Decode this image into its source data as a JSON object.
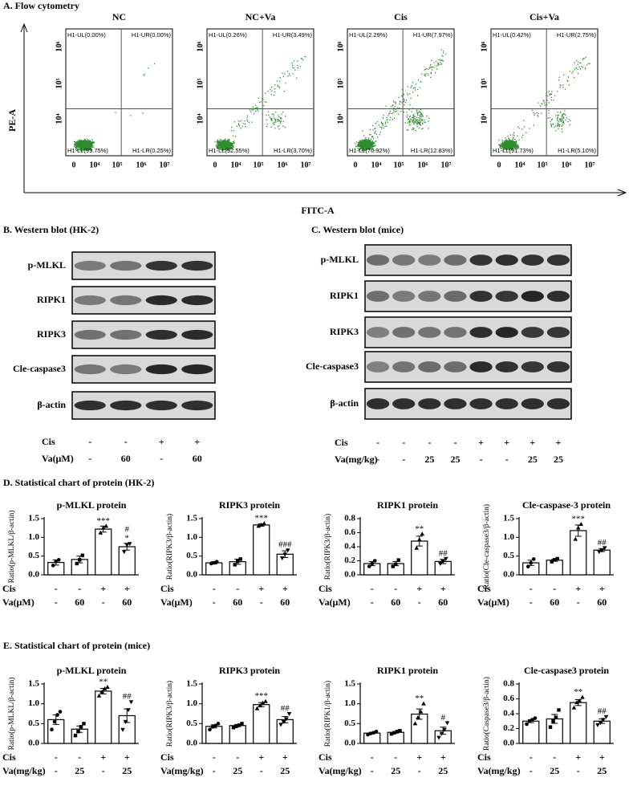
{
  "panel_a": {
    "title": "A. Flow cytometry",
    "y_label": "PE-A",
    "x_label": "FITC-A",
    "x_tick_labels": [
      "0",
      "10⁴",
      "10⁵",
      "10⁶",
      "10⁷"
    ],
    "y_tick_labels": [
      "10⁴",
      "10⁵",
      "10⁶"
    ],
    "plots": [
      {
        "title": "NC",
        "quadrants": [
          "H1-UL(0.00%)",
          "H1-UR(0.00%)",
          "H1-LL(99.75%)",
          "H1-LR(0.25%)"
        ]
      },
      {
        "title": "NC+Va",
        "quadrants": [
          "H1-UL(0.26%)",
          "H1-UR(3.49%)",
          "H1-LL(92.55%)",
          "H1-LR(3.70%)"
        ]
      },
      {
        "title": "Cis",
        "quadrants": [
          "H1-UL(2.29%)",
          "H1-UR(7.97%)",
          "H1-LL(76.92%)",
          "H1-LR(12.83%)"
        ]
      },
      {
        "title": "Cis+Va",
        "quadrants": [
          "H1-UL(0.42%)",
          "H1-UR(2.75%)",
          "H1-LL(91.73%)",
          "H1-LR(5.10%)"
        ]
      }
    ]
  },
  "panel_b": {
    "title": "B. Western blot (HK-2)",
    "proteins": [
      "p-MLKL",
      "RIPK1",
      "RIPK3",
      "Cle-caspase3",
      "β-actin"
    ],
    "rows": [
      {
        "label": "Cis",
        "cells": [
          "-",
          "-",
          "+",
          "+"
        ]
      },
      {
        "label": "Va(μM)",
        "cells": [
          "-",
          "60",
          "-",
          "60"
        ]
      }
    ]
  },
  "panel_c": {
    "title": "C. Western blot (mice)",
    "proteins": [
      "p-MLKL",
      "RIPK1",
      "RIPK3",
      "Cle-caspase3",
      "β-actin"
    ],
    "rows": [
      {
        "label": "Cis",
        "cells": [
          "-",
          "-",
          "-",
          "-",
          "+",
          "+",
          "+",
          "+"
        ]
      },
      {
        "label": "Va(mg/kg)",
        "cells": [
          "-",
          "-",
          "25",
          "25",
          "-",
          "-",
          "25",
          "25"
        ]
      }
    ]
  },
  "panel_d_title": "D. Statistical chart of protein (HK-2)",
  "panel_e_title": "E. Statistical chart of protein (mice)",
  "chart_data": [
    {
      "type": "bar",
      "title": "p-MLKL protein",
      "y_label": "Ratio(p-MLKL/β-actin)",
      "categories": [
        null,
        null,
        null,
        null
      ],
      "values": [
        0.33,
        0.41,
        1.22,
        0.75
      ],
      "errors": [
        0.07,
        0.09,
        0.08,
        0.09
      ],
      "points": [
        [
          0.25,
          0.35,
          0.4
        ],
        [
          0.3,
          0.4,
          0.52
        ],
        [
          1.12,
          1.25,
          1.3
        ],
        [
          0.62,
          0.8,
          0.83
        ]
      ],
      "stars": [
        null,
        null,
        "***",
        "*"
      ],
      "hashes": [
        null,
        null,
        null,
        "#"
      ],
      "ylim": [
        0,
        1.5
      ],
      "yticks": [
        {
          "value": 0,
          "label": "0.0"
        },
        0.5,
        {
          "value": 1,
          "label": "1.0"
        },
        1.5
      ],
      "condition_rows": [
        {
          "label": "Cis",
          "cells": [
            "-",
            "-",
            "+",
            "+"
          ]
        },
        {
          "label": "Va(μM)",
          "cells": [
            "-",
            "60",
            "-",
            "60"
          ]
        }
      ]
    },
    {
      "type": "bar",
      "title": "RIPK3 protein",
      "y_label": "Ratio(RIPK3/β-actin)",
      "categories": [
        null,
        null,
        null,
        null
      ],
      "values": [
        0.32,
        0.35,
        1.33,
        0.55
      ],
      "errors": [
        0.03,
        0.07,
        0.03,
        0.09
      ],
      "points": [
        [
          0.3,
          0.32,
          0.35
        ],
        [
          0.27,
          0.36,
          0.42
        ],
        [
          1.3,
          1.33,
          1.37
        ],
        [
          0.45,
          0.55,
          0.66
        ]
      ],
      "stars": [
        null,
        null,
        "***",
        null
      ],
      "hashes": [
        null,
        null,
        null,
        "###"
      ],
      "ylim": [
        0,
        1.5
      ],
      "yticks": [
        {
          "value": 0,
          "label": "0.0"
        },
        0.5,
        {
          "value": 1,
          "label": "1.0"
        },
        1.5
      ],
      "condition_rows": [
        {
          "label": "Cis",
          "cells": [
            "-",
            "-",
            "+",
            "+"
          ]
        },
        {
          "label": "Va(μM)",
          "cells": [
            "-",
            "60",
            "-",
            "60"
          ]
        }
      ]
    },
    {
      "type": "bar",
      "title": "RIPK1 protein",
      "y_label": "Ratio(RIPK3/β-actin)",
      "categories": [
        null,
        null,
        null,
        null
      ],
      "values": [
        0.16,
        0.16,
        0.48,
        0.19
      ],
      "errors": [
        0.03,
        0.03,
        0.07,
        0.03
      ],
      "points": [
        [
          0.12,
          0.16,
          0.2
        ],
        [
          0.12,
          0.15,
          0.21
        ],
        [
          0.38,
          0.5,
          0.58
        ],
        [
          0.16,
          0.19,
          0.23
        ]
      ],
      "stars": [
        null,
        null,
        "**",
        null
      ],
      "hashes": [
        null,
        null,
        null,
        "##"
      ],
      "ylim": [
        0,
        0.8
      ],
      "yticks": [
        {
          "value": 0,
          "label": "0.0"
        },
        0.2,
        0.4,
        0.6,
        0.8
      ],
      "condition_rows": [
        {
          "label": "Cis",
          "cells": [
            "-",
            "-",
            "+",
            "+"
          ]
        },
        {
          "label": "Va(μM)",
          "cells": [
            "-",
            "60",
            "-",
            "60"
          ]
        }
      ]
    },
    {
      "type": "bar",
      "title": "Cle-caspase-3 protein",
      "y_label": "Ratio(Cle-caspase3/β-actin)",
      "categories": [
        null,
        null,
        null,
        null
      ],
      "values": [
        0.32,
        0.39,
        1.18,
        0.66
      ],
      "errors": [
        0.07,
        0.03,
        0.15,
        0.04
      ],
      "points": [
        [
          0.22,
          0.32,
          0.42
        ],
        [
          0.35,
          0.4,
          0.43
        ],
        [
          0.95,
          1.25,
          1.35
        ],
        [
          0.62,
          0.66,
          0.72
        ]
      ],
      "stars": [
        null,
        null,
        "***",
        null
      ],
      "hashes": [
        null,
        null,
        null,
        "##"
      ],
      "ylim": [
        0,
        1.5
      ],
      "yticks": [
        {
          "value": 0,
          "label": "0.0"
        },
        0.5,
        {
          "value": 1,
          "label": "1.0"
        },
        1.5
      ],
      "condition_rows": [
        {
          "label": "Cis",
          "cells": [
            "-",
            "-",
            "+",
            "+"
          ]
        },
        {
          "label": "Va(μM)",
          "cells": [
            "-",
            "60",
            "-",
            "60"
          ]
        }
      ]
    },
    {
      "type": "bar",
      "title": "p-MLKL protein",
      "y_label": "Ratio(p-MLKL/β-actin)",
      "categories": [
        null,
        null,
        null,
        null
      ],
      "values": [
        0.6,
        0.36,
        1.32,
        0.7
      ],
      "errors": [
        0.12,
        0.08,
        0.07,
        0.17
      ],
      "points": [
        [
          0.35,
          0.55,
          0.72,
          0.8
        ],
        [
          0.2,
          0.3,
          0.42,
          0.5
        ],
        [
          1.2,
          1.3,
          1.38,
          1.42
        ],
        [
          0.35,
          0.55,
          0.85,
          1.05
        ]
      ],
      "stars": [
        null,
        null,
        "**",
        null
      ],
      "hashes": [
        null,
        null,
        null,
        "##"
      ],
      "ylim": [
        0,
        1.5
      ],
      "yticks": [
        {
          "value": 0,
          "label": "0.0"
        },
        0.5,
        {
          "value": 1,
          "label": "1.0"
        },
        1.5
      ],
      "condition_rows": [
        {
          "label": "Cis",
          "cells": [
            "-",
            "-",
            "+",
            "+"
          ]
        },
        {
          "label": "Va(mg/kg)",
          "cells": [
            "-",
            "25",
            "-",
            "25"
          ]
        }
      ]
    },
    {
      "type": "bar",
      "title": "RIPK3 protein",
      "y_label": "Ratio(RIPK3/β-actin)",
      "categories": [
        null,
        null,
        null,
        null
      ],
      "values": [
        0.43,
        0.45,
        0.98,
        0.6
      ],
      "errors": [
        0.04,
        0.03,
        0.05,
        0.08
      ],
      "points": [
        [
          0.35,
          0.42,
          0.45,
          0.5
        ],
        [
          0.4,
          0.43,
          0.46,
          0.5
        ],
        [
          0.88,
          0.95,
          1.02,
          1.06
        ],
        [
          0.48,
          0.55,
          0.62,
          0.75
        ]
      ],
      "stars": [
        null,
        null,
        "***",
        null
      ],
      "hashes": [
        null,
        null,
        null,
        "##"
      ],
      "ylim": [
        0,
        1.5
      ],
      "yticks": [
        {
          "value": 0,
          "label": "0.0"
        },
        0.5,
        {
          "value": 1,
          "label": "1.0"
        },
        1.5
      ],
      "condition_rows": [
        {
          "label": "Cis",
          "cells": [
            "-",
            "-",
            "+",
            "+"
          ]
        },
        {
          "label": "Va(mg/kg)",
          "cells": [
            "-",
            "25",
            "-",
            "25"
          ]
        }
      ]
    },
    {
      "type": "bar",
      "title": "RIPK1 protein",
      "y_label": "Ratio(RIPK1/β-actin)",
      "categories": [
        null,
        null,
        null,
        null
      ],
      "values": [
        0.26,
        0.28,
        0.74,
        0.32
      ],
      "errors": [
        0.02,
        0.02,
        0.13,
        0.09
      ],
      "points": [
        [
          0.22,
          0.25,
          0.27,
          0.3
        ],
        [
          0.24,
          0.27,
          0.3,
          0.32
        ],
        [
          0.5,
          0.65,
          0.8,
          1.0
        ],
        [
          0.15,
          0.25,
          0.35,
          0.52
        ]
      ],
      "stars": [
        null,
        null,
        "**",
        null
      ],
      "hashes": [
        null,
        null,
        null,
        "#"
      ],
      "ylim": [
        0,
        1.5
      ],
      "yticks": [
        {
          "value": 0,
          "label": "0.0"
        },
        0.5,
        {
          "value": 1,
          "label": "1.0"
        },
        1.5
      ],
      "condition_rows": [
        {
          "label": "Cis",
          "cells": [
            "-",
            "-",
            "+",
            "+"
          ]
        },
        {
          "label": "Va(mg/kg)",
          "cells": [
            "-",
            "25",
            "-",
            "25"
          ]
        }
      ]
    },
    {
      "type": "bar",
      "title": "Cle-caspase3 protein",
      "y_label": "Ratio(Caspase3/β-actin)",
      "categories": [
        null,
        null,
        null,
        null
      ],
      "values": [
        0.3,
        0.33,
        0.55,
        0.3
      ],
      "errors": [
        0.02,
        0.06,
        0.04,
        0.03
      ],
      "points": [
        [
          0.26,
          0.3,
          0.32,
          0.34
        ],
        [
          0.22,
          0.3,
          0.35,
          0.45
        ],
        [
          0.48,
          0.55,
          0.57,
          0.62
        ],
        [
          0.25,
          0.28,
          0.32,
          0.36
        ]
      ],
      "stars": [
        null,
        null,
        "**",
        null
      ],
      "hashes": [
        null,
        null,
        null,
        "##"
      ],
      "ylim": [
        0,
        0.8
      ],
      "yticks": [
        {
          "value": 0,
          "label": "0.0"
        },
        0.2,
        0.4,
        0.6,
        0.8
      ],
      "condition_rows": [
        {
          "label": "Cis",
          "cells": [
            "-",
            "-",
            "+",
            "+"
          ]
        },
        {
          "label": "Va(mg/kg)",
          "cells": [
            "-",
            "25",
            "-",
            "25"
          ]
        }
      ]
    }
  ]
}
